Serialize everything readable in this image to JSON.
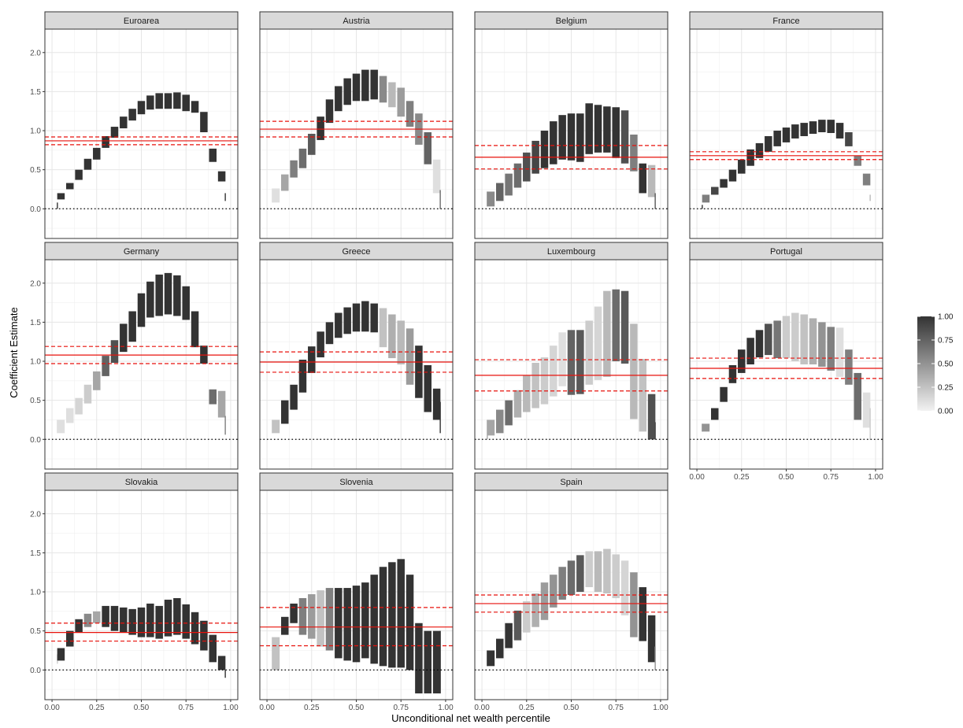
{
  "chart_data": {
    "type": "bar",
    "description": "Faceted floating-bar (interval) chart",
    "xlabel": "Unconditional net wealth percentile",
    "ylabel": "Coefficient Estimate",
    "xlim": [
      -0.04,
      1.04
    ],
    "ylim": [
      -0.38,
      2.3
    ],
    "x_ticks": [
      "0.00",
      "0.25",
      "0.50",
      "0.75",
      "1.00"
    ],
    "y_ticks": [
      "0.0",
      "0.5",
      "1.0",
      "1.5",
      "2.0"
    ],
    "grid": true,
    "legend": {
      "position": "right",
      "title": "",
      "ticks": [
        "1.00",
        "0.75",
        "0.50",
        "0.25",
        "0.00"
      ],
      "type": "colorbar",
      "low_color": "#f2f2f2",
      "high_color": "#333333"
    },
    "percentiles": [
      0.03,
      0.05,
      0.1,
      0.15,
      0.2,
      0.25,
      0.3,
      0.35,
      0.4,
      0.45,
      0.5,
      0.55,
      0.6,
      0.65,
      0.7,
      0.75,
      0.8,
      0.85,
      0.9,
      0.95,
      0.97
    ],
    "reference_line_color": "#e8120c",
    "panels": [
      {
        "name": "Euroarea",
        "mean": 0.87,
        "ci": [
          0.82,
          0.92
        ],
        "lo": [
          0.0,
          0.12,
          0.25,
          0.37,
          0.5,
          0.63,
          0.78,
          0.91,
          1.03,
          1.13,
          1.21,
          1.27,
          1.28,
          1.28,
          1.28,
          1.25,
          1.23,
          0.98,
          0.6,
          0.35,
          0.1
        ],
        "hi": [
          0.08,
          0.2,
          0.33,
          0.5,
          0.64,
          0.78,
          0.93,
          1.05,
          1.18,
          1.28,
          1.38,
          1.45,
          1.48,
          1.48,
          1.49,
          1.46,
          1.38,
          1.24,
          0.77,
          0.48,
          0.2
        ],
        "shade": [
          1,
          1,
          1,
          1,
          1,
          1,
          1,
          1,
          1,
          1,
          1,
          1,
          1,
          1,
          1,
          1,
          1,
          1,
          1,
          1,
          1
        ]
      },
      {
        "name": "Austria",
        "mean": 1.02,
        "ci": [
          0.92,
          1.12
        ],
        "lo": [
          0.08,
          0.08,
          0.23,
          0.4,
          0.52,
          0.69,
          0.88,
          1.1,
          1.25,
          1.33,
          1.38,
          1.38,
          1.4,
          1.36,
          1.3,
          1.18,
          1.05,
          0.82,
          0.57,
          0.2,
          0.0
        ],
        "hi": [
          0.26,
          0.26,
          0.44,
          0.62,
          0.77,
          0.96,
          1.18,
          1.4,
          1.57,
          1.67,
          1.73,
          1.78,
          1.78,
          1.7,
          1.62,
          1.55,
          1.38,
          1.22,
          0.98,
          0.63,
          0.24
        ],
        "shade": [
          0.1,
          0.1,
          0.4,
          0.6,
          0.7,
          0.8,
          1,
          1,
          1,
          1,
          1,
          1,
          1,
          0.55,
          0.3,
          0.45,
          0.6,
          0.55,
          0.75,
          0.1,
          0.7
        ]
      },
      {
        "name": "Belgium",
        "mean": 0.66,
        "ci": [
          0.51,
          0.81
        ],
        "lo": [
          0.03,
          0.03,
          0.1,
          0.17,
          0.27,
          0.35,
          0.45,
          0.52,
          0.57,
          0.63,
          0.62,
          0.6,
          0.7,
          0.72,
          0.72,
          0.65,
          0.58,
          0.48,
          0.2,
          0.15,
          0.0
        ],
        "hi": [
          0.22,
          0.22,
          0.33,
          0.45,
          0.58,
          0.72,
          0.87,
          1.0,
          1.12,
          1.2,
          1.22,
          1.22,
          1.35,
          1.33,
          1.31,
          1.3,
          1.26,
          0.95,
          0.58,
          0.56,
          0.2
        ],
        "shade": [
          0.55,
          0.55,
          0.75,
          0.65,
          0.7,
          0.85,
          0.9,
          1,
          1,
          1,
          1,
          1,
          1,
          1,
          1,
          1,
          0.85,
          0.6,
          1,
          0.3,
          0.8
        ]
      },
      {
        "name": "France",
        "mean": 0.68,
        "ci": [
          0.63,
          0.73
        ],
        "lo": [
          0.0,
          0.08,
          0.18,
          0.27,
          0.35,
          0.45,
          0.55,
          0.65,
          0.73,
          0.8,
          0.85,
          0.9,
          0.93,
          0.96,
          0.98,
          0.97,
          0.9,
          0.8,
          0.55,
          0.3,
          0.1
        ],
        "hi": [
          0.05,
          0.18,
          0.28,
          0.38,
          0.5,
          0.63,
          0.76,
          0.84,
          0.93,
          1.0,
          1.04,
          1.08,
          1.1,
          1.12,
          1.14,
          1.14,
          1.1,
          0.98,
          0.68,
          0.45,
          0.18
        ],
        "shade": [
          1,
          0.6,
          0.9,
          1,
          1,
          1,
          1,
          1,
          1,
          1,
          1,
          1,
          1,
          1,
          1,
          1,
          1,
          0.9,
          0.6,
          0.6,
          0.3
        ]
      },
      {
        "name": "Germany",
        "mean": 1.08,
        "ci": [
          0.97,
          1.19
        ],
        "lo": [
          0.08,
          0.08,
          0.21,
          0.32,
          0.46,
          0.63,
          0.81,
          0.98,
          1.12,
          1.25,
          1.44,
          1.56,
          1.58,
          1.6,
          1.58,
          1.53,
          1.18,
          0.97,
          0.45,
          0.28,
          0.06
        ],
        "hi": [
          0.25,
          0.25,
          0.4,
          0.53,
          0.7,
          0.87,
          1.07,
          1.27,
          1.48,
          1.64,
          1.87,
          2.02,
          2.11,
          2.13,
          2.1,
          1.96,
          1.64,
          1.2,
          0.64,
          0.62,
          0.3
        ],
        "shade": [
          0.1,
          0.1,
          0.1,
          0.15,
          0.2,
          0.4,
          0.75,
          0.85,
          1,
          1,
          1,
          1,
          1,
          1,
          1,
          1,
          1,
          1,
          0.7,
          0.4,
          0.6
        ]
      },
      {
        "name": "Greece",
        "mean": 0.99,
        "ci": [
          0.86,
          1.12
        ],
        "lo": [
          0.08,
          0.08,
          0.2,
          0.38,
          0.6,
          0.85,
          1.05,
          1.22,
          1.3,
          1.35,
          1.38,
          1.38,
          1.37,
          1.18,
          1.04,
          0.96,
          0.7,
          0.53,
          0.35,
          0.25,
          0.08
        ],
        "hi": [
          0.25,
          0.25,
          0.5,
          0.7,
          1.02,
          1.19,
          1.38,
          1.5,
          1.62,
          1.69,
          1.74,
          1.77,
          1.74,
          1.68,
          1.6,
          1.52,
          1.42,
          1.2,
          0.95,
          0.65,
          0.48
        ],
        "shade": [
          0.25,
          0.25,
          1,
          1,
          1,
          1,
          1,
          1,
          1,
          1,
          1,
          1,
          1,
          0.25,
          0.35,
          0.3,
          0.45,
          1,
          1,
          1,
          1
        ]
      },
      {
        "name": "Luxembourg",
        "mean": 0.82,
        "ci": [
          0.62,
          1.02
        ],
        "lo": [
          0.0,
          0.05,
          0.08,
          0.18,
          0.28,
          0.35,
          0.4,
          0.45,
          0.55,
          0.68,
          0.57,
          0.58,
          0.7,
          0.76,
          0.8,
          1.0,
          0.97,
          0.26,
          0.1,
          0.0,
          0.0
        ],
        "hi": [
          0.25,
          0.25,
          0.38,
          0.5,
          0.63,
          0.82,
          0.98,
          1.05,
          1.2,
          1.37,
          1.4,
          1.4,
          1.52,
          1.7,
          1.9,
          1.92,
          1.9,
          1.48,
          1.03,
          0.58,
          0.22
        ],
        "shade": [
          0.4,
          0.4,
          0.55,
          0.7,
          0.35,
          0.3,
          0.25,
          0.2,
          0.15,
          0.1,
          0.75,
          0.8,
          0.2,
          0.15,
          0.3,
          0.7,
          0.8,
          0.3,
          0.25,
          0.85,
          0.9
        ]
      },
      {
        "name": "Portugal",
        "mean": 0.91,
        "ci": [
          0.78,
          1.04
        ],
        "lo": [
          0.1,
          0.1,
          0.25,
          0.48,
          0.72,
          0.85,
          0.96,
          1.05,
          1.08,
          1.04,
          1.04,
          1.0,
          0.96,
          0.96,
          0.93,
          0.88,
          0.8,
          0.7,
          0.25,
          0.15,
          0.0
        ],
        "hi": [
          0.2,
          0.2,
          0.4,
          0.67,
          0.95,
          1.15,
          1.3,
          1.4,
          1.48,
          1.52,
          1.58,
          1.62,
          1.6,
          1.55,
          1.5,
          1.44,
          1.43,
          1.15,
          0.85,
          0.6,
          0.4
        ],
        "shade": [
          0.5,
          0.5,
          1,
          1,
          1,
          1,
          1,
          1,
          0.85,
          0.65,
          0.2,
          0.2,
          0.25,
          0.35,
          0.5,
          0.6,
          0.1,
          0.6,
          0.7,
          0.1,
          0.2
        ]
      },
      {
        "name": "Slovakia",
        "mean": 0.48,
        "ci": [
          0.37,
          0.6
        ],
        "lo": [
          0.08,
          0.12,
          0.3,
          0.48,
          0.55,
          0.6,
          0.55,
          0.5,
          0.48,
          0.45,
          0.42,
          0.42,
          0.4,
          0.43,
          0.45,
          0.4,
          0.33,
          0.25,
          0.1,
          0.0,
          -0.1
        ],
        "hi": [
          0.2,
          0.28,
          0.5,
          0.65,
          0.72,
          0.75,
          0.82,
          0.82,
          0.8,
          0.78,
          0.8,
          0.85,
          0.82,
          0.9,
          0.92,
          0.84,
          0.74,
          0.63,
          0.45,
          0.18,
          0.0
        ],
        "shade": [
          0.2,
          1,
          1,
          1,
          0.55,
          0.4,
          1,
          1,
          1,
          1,
          1,
          1,
          1,
          1,
          1,
          1,
          1,
          1,
          1,
          1,
          1
        ]
      },
      {
        "name": "Slovenia",
        "mean": 0.55,
        "ci": [
          0.31,
          0.8
        ],
        "lo": [
          0.0,
          0.0,
          0.45,
          0.6,
          0.45,
          0.4,
          0.3,
          0.25,
          0.15,
          0.12,
          0.1,
          0.15,
          0.08,
          0.05,
          0.03,
          0.03,
          0.0,
          -0.3,
          -0.3,
          -0.3,
          -0.3
        ],
        "hi": [
          0.42,
          0.42,
          0.68,
          0.85,
          0.92,
          0.97,
          1.02,
          1.05,
          1.05,
          1.05,
          1.08,
          1.12,
          1.22,
          1.32,
          1.38,
          1.42,
          1.22,
          0.6,
          0.5,
          0.5,
          0.5
        ],
        "shade": [
          0.25,
          0.25,
          1,
          1,
          0.6,
          0.45,
          0.25,
          0.6,
          1,
          1,
          1,
          1,
          1,
          1,
          1,
          1,
          1,
          1,
          1,
          1,
          1
        ]
      },
      {
        "name": "Spain",
        "mean": 0.85,
        "ci": [
          0.74,
          0.96
        ],
        "lo": [
          0.05,
          0.05,
          0.15,
          0.28,
          0.38,
          0.48,
          0.55,
          0.64,
          0.8,
          0.9,
          0.96,
          1.0,
          1.06,
          1.0,
          0.98,
          0.92,
          0.7,
          0.42,
          0.37,
          0.1,
          0.0
        ],
        "hi": [
          0.25,
          0.25,
          0.4,
          0.6,
          0.76,
          0.88,
          0.98,
          1.12,
          1.22,
          1.32,
          1.4,
          1.47,
          1.52,
          1.52,
          1.55,
          1.48,
          1.4,
          1.25,
          1.06,
          0.7,
          0.3
        ],
        "shade": [
          1,
          1,
          1,
          1,
          0.8,
          0.2,
          0.35,
          0.45,
          0.5,
          0.6,
          0.7,
          0.8,
          0.2,
          0.3,
          0.25,
          0.2,
          0.15,
          0.5,
          1,
          1,
          0.5
        ]
      }
    ]
  }
}
